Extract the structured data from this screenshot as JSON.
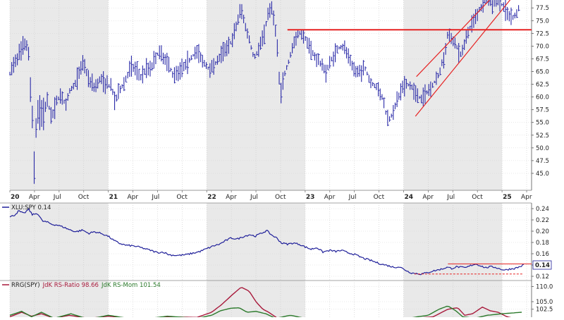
{
  "chart_data": [
    {
      "type": "ohlc",
      "title": "",
      "ylim": [
        42.5,
        78.5
      ],
      "y_ticks": [
        "45.0",
        "47.5",
        "50.0",
        "52.5",
        "55.0",
        "57.5",
        "60.0",
        "62.5",
        "65.0",
        "67.5",
        "70.0",
        "72.5",
        "75.0",
        "77.5"
      ],
      "x_labels": [
        {
          "label": "20",
          "bold": true,
          "t": 0.0
        },
        {
          "label": "Apr",
          "t": 0.25
        },
        {
          "label": "Jul",
          "t": 0.5
        },
        {
          "label": "Oct",
          "t": 0.75
        },
        {
          "label": "21",
          "bold": true,
          "t": 1.0
        },
        {
          "label": "Apr",
          "t": 1.25
        },
        {
          "label": "Jul",
          "t": 1.5
        },
        {
          "label": "Oct",
          "t": 1.75
        },
        {
          "label": "22",
          "bold": true,
          "t": 2.0
        },
        {
          "label": "Apr",
          "t": 2.25
        },
        {
          "label": "Jul",
          "t": 2.5
        },
        {
          "label": "Oct",
          "t": 2.75
        },
        {
          "label": "23",
          "bold": true,
          "t": 3.0
        },
        {
          "label": "Apr",
          "t": 3.25
        },
        {
          "label": "Jul",
          "t": 3.5
        },
        {
          "label": "Oct",
          "t": 3.75
        },
        {
          "label": "24",
          "bold": true,
          "t": 4.0
        },
        {
          "label": "Apr",
          "t": 4.25
        },
        {
          "label": "Jul",
          "t": 4.5
        },
        {
          "label": "Oct",
          "t": 4.75
        },
        {
          "label": "25",
          "bold": true,
          "t": 5.0
        },
        {
          "label": "Apr",
          "t": 5.25
        }
      ],
      "x_range": [
        0.0,
        5.3
      ],
      "shaded_years": [
        [
          0.0,
          1.0
        ],
        [
          2.0,
          3.0
        ],
        [
          4.0,
          5.0
        ]
      ],
      "price_path": [
        [
          0.0,
          64.5
        ],
        [
          0.05,
          67.0
        ],
        [
          0.1,
          68.5
        ],
        [
          0.14,
          70.0
        ],
        [
          0.17,
          70.5
        ],
        [
          0.19,
          68.0
        ],
        [
          0.21,
          61.0
        ],
        [
          0.23,
          56.0
        ],
        [
          0.24,
          50.0
        ],
        [
          0.245,
          44.5
        ],
        [
          0.26,
          53.0
        ],
        [
          0.29,
          58.0
        ],
        [
          0.33,
          56.5
        ],
        [
          0.38,
          59.0
        ],
        [
          0.43,
          56.0
        ],
        [
          0.48,
          59.5
        ],
        [
          0.52,
          60.5
        ],
        [
          0.57,
          58.0
        ],
        [
          0.6,
          61.0
        ],
        [
          0.66,
          62.5
        ],
        [
          0.7,
          64.5
        ],
        [
          0.75,
          67.0
        ],
        [
          0.8,
          63.5
        ],
        [
          0.86,
          62.0
        ],
        [
          0.92,
          63.5
        ],
        [
          0.98,
          62.5
        ],
        [
          1.03,
          62.0
        ],
        [
          1.07,
          59.0
        ],
        [
          1.12,
          61.5
        ],
        [
          1.18,
          63.5
        ],
        [
          1.23,
          66.0
        ],
        [
          1.28,
          65.5
        ],
        [
          1.33,
          64.0
        ],
        [
          1.38,
          65.5
        ],
        [
          1.44,
          66.0
        ],
        [
          1.5,
          68.5
        ],
        [
          1.56,
          68.0
        ],
        [
          1.61,
          66.5
        ],
        [
          1.65,
          64.5
        ],
        [
          1.7,
          65.0
        ],
        [
          1.77,
          66.0
        ],
        [
          1.83,
          67.5
        ],
        [
          1.9,
          69.0
        ],
        [
          1.96,
          67.0
        ],
        [
          2.02,
          65.5
        ],
        [
          2.08,
          66.5
        ],
        [
          2.14,
          68.0
        ],
        [
          2.2,
          70.0
        ],
        [
          2.26,
          71.0
        ],
        [
          2.3,
          74.0
        ],
        [
          2.35,
          77.5
        ],
        [
          2.39,
          74.0
        ],
        [
          2.43,
          71.5
        ],
        [
          2.48,
          67.5
        ],
        [
          2.53,
          69.5
        ],
        [
          2.58,
          72.5
        ],
        [
          2.62,
          76.0
        ],
        [
          2.65,
          78.0
        ],
        [
          2.68,
          75.5
        ],
        [
          2.71,
          72.0
        ],
        [
          2.73,
          65.0
        ],
        [
          2.75,
          60.5
        ],
        [
          2.79,
          64.5
        ],
        [
          2.84,
          67.5
        ],
        [
          2.89,
          71.0
        ],
        [
          2.94,
          72.5
        ],
        [
          2.99,
          72.0
        ],
        [
          3.05,
          69.5
        ],
        [
          3.1,
          68.0
        ],
        [
          3.16,
          66.5
        ],
        [
          3.21,
          65.0
        ],
        [
          3.27,
          67.5
        ],
        [
          3.33,
          69.5
        ],
        [
          3.38,
          70.0
        ],
        [
          3.43,
          68.5
        ],
        [
          3.48,
          66.0
        ],
        [
          3.54,
          64.5
        ],
        [
          3.6,
          66.0
        ],
        [
          3.66,
          63.0
        ],
        [
          3.72,
          62.0
        ],
        [
          3.78,
          60.0
        ],
        [
          3.82,
          57.0
        ],
        [
          3.85,
          55.5
        ],
        [
          3.88,
          56.5
        ],
        [
          3.92,
          58.5
        ],
        [
          3.97,
          61.0
        ],
        [
          4.02,
          62.5
        ],
        [
          4.08,
          62.0
        ],
        [
          4.13,
          60.5
        ],
        [
          4.18,
          59.5
        ],
        [
          4.24,
          61.0
        ],
        [
          4.3,
          62.5
        ],
        [
          4.36,
          64.5
        ],
        [
          4.41,
          68.0
        ],
        [
          4.45,
          72.5
        ],
        [
          4.49,
          71.5
        ],
        [
          4.53,
          70.5
        ],
        [
          4.57,
          68.0
        ],
        [
          4.62,
          70.5
        ],
        [
          4.67,
          73.5
        ],
        [
          4.72,
          75.5
        ],
        [
          4.78,
          77.5
        ],
        [
          4.84,
          79.0
        ],
        [
          4.9,
          78.0
        ],
        [
          4.96,
          79.0
        ],
        [
          5.02,
          77.5
        ],
        [
          5.07,
          76.0
        ],
        [
          5.12,
          75.5
        ],
        [
          5.17,
          77.5
        ]
      ],
      "resistance_line": [
        [
          2.82,
          73.2
        ],
        [
          5.3,
          73.2
        ]
      ],
      "trend_channel": {
        "upper": [
          [
            4.13,
            64.0
          ],
          [
            4.92,
            80.0
          ]
        ],
        "lower": [
          [
            4.12,
            56.2
          ],
          [
            5.1,
            79.5
          ]
        ]
      },
      "colors": {
        "bars": "#2a2aa8",
        "annotation": "#e62222",
        "shade": "#e9e9e9"
      }
    },
    {
      "type": "line",
      "series": [
        {
          "name": "XLU:SPY 0.14"
        }
      ],
      "legend": "top-left",
      "ylim": [
        0.115,
        0.245
      ],
      "y_ticks": [
        "0.12",
        "0.14",
        "0.16",
        "0.18",
        "0.20",
        "0.22",
        "0.24"
      ],
      "last_value": "0.14",
      "path": [
        [
          0.0,
          0.225
        ],
        [
          0.05,
          0.229
        ],
        [
          0.09,
          0.236
        ],
        [
          0.14,
          0.231
        ],
        [
          0.19,
          0.239
        ],
        [
          0.23,
          0.229
        ],
        [
          0.28,
          0.232
        ],
        [
          0.33,
          0.218
        ],
        [
          0.38,
          0.216
        ],
        [
          0.43,
          0.212
        ],
        [
          0.48,
          0.211
        ],
        [
          0.55,
          0.207
        ],
        [
          0.6,
          0.203
        ],
        [
          0.67,
          0.199
        ],
        [
          0.74,
          0.202
        ],
        [
          0.8,
          0.196
        ],
        [
          0.86,
          0.199
        ],
        [
          0.93,
          0.196
        ],
        [
          1.0,
          0.191
        ],
        [
          1.06,
          0.183
        ],
        [
          1.12,
          0.178
        ],
        [
          1.18,
          0.175
        ],
        [
          1.25,
          0.174
        ],
        [
          1.31,
          0.172
        ],
        [
          1.37,
          0.169
        ],
        [
          1.43,
          0.166
        ],
        [
          1.5,
          0.162
        ],
        [
          1.56,
          0.163
        ],
        [
          1.62,
          0.158
        ],
        [
          1.7,
          0.157
        ],
        [
          1.78,
          0.158
        ],
        [
          1.86,
          0.161
        ],
        [
          1.93,
          0.164
        ],
        [
          2.0,
          0.169
        ],
        [
          2.07,
          0.174
        ],
        [
          2.13,
          0.177
        ],
        [
          2.19,
          0.183
        ],
        [
          2.25,
          0.188
        ],
        [
          2.31,
          0.186
        ],
        [
          2.38,
          0.191
        ],
        [
          2.44,
          0.194
        ],
        [
          2.49,
          0.191
        ],
        [
          2.55,
          0.196
        ],
        [
          2.61,
          0.201
        ],
        [
          2.66,
          0.193
        ],
        [
          2.71,
          0.188
        ],
        [
          2.76,
          0.179
        ],
        [
          2.82,
          0.177
        ],
        [
          2.88,
          0.179
        ],
        [
          2.94,
          0.177
        ],
        [
          3.0,
          0.172
        ],
        [
          3.06,
          0.168
        ],
        [
          3.12,
          0.171
        ],
        [
          3.18,
          0.163
        ],
        [
          3.25,
          0.166
        ],
        [
          3.31,
          0.164
        ],
        [
          3.37,
          0.166
        ],
        [
          3.43,
          0.162
        ],
        [
          3.5,
          0.159
        ],
        [
          3.55,
          0.155
        ],
        [
          3.61,
          0.151
        ],
        [
          3.67,
          0.148
        ],
        [
          3.73,
          0.144
        ],
        [
          3.79,
          0.141
        ],
        [
          3.84,
          0.139
        ],
        [
          3.9,
          0.136
        ],
        [
          3.95,
          0.137
        ],
        [
          4.0,
          0.133
        ],
        [
          4.04,
          0.129
        ],
        [
          4.08,
          0.126
        ],
        [
          4.13,
          0.125
        ],
        [
          4.18,
          0.124
        ],
        [
          4.23,
          0.126
        ],
        [
          4.29,
          0.129
        ],
        [
          4.34,
          0.131
        ],
        [
          4.39,
          0.133
        ],
        [
          4.44,
          0.136
        ],
        [
          4.49,
          0.134
        ],
        [
          4.54,
          0.137
        ],
        [
          4.58,
          0.136
        ],
        [
          4.63,
          0.135
        ],
        [
          4.68,
          0.139
        ],
        [
          4.73,
          0.142
        ],
        [
          4.78,
          0.139
        ],
        [
          4.83,
          0.135
        ],
        [
          4.88,
          0.137
        ],
        [
          4.93,
          0.136
        ],
        [
          4.98,
          0.133
        ],
        [
          5.03,
          0.131
        ],
        [
          5.08,
          0.133
        ],
        [
          5.13,
          0.134
        ],
        [
          5.18,
          0.137
        ],
        [
          5.23,
          0.141
        ]
      ],
      "resistance_line": [
        [
          4.45,
          0.142
        ],
        [
          5.3,
          0.142
        ]
      ],
      "support_line_dashed": [
        [
          4.11,
          0.124
        ],
        [
          5.22,
          0.124
        ]
      ],
      "colors": {
        "line": "#20209a",
        "annotation": "#e62222"
      }
    },
    {
      "type": "line",
      "legend": "top-left",
      "legend_parts": [
        {
          "text": "RRG(SPY)",
          "color": "#222222"
        },
        {
          "text": "JdK RS-Ratio 98.66",
          "color": "#a8193b"
        },
        {
          "text": "JdK RS-Mom 101.54",
          "color": "#2b7a2b"
        }
      ],
      "ylim": [
        98.0,
        112.0
      ],
      "y_ticks": [
        "110.0",
        "105.0",
        "102.5"
      ],
      "series": [
        {
          "name": "JdK RS-Ratio 98.66",
          "path": [
            [
              0.0,
              100.0
            ],
            [
              0.12,
              101.5
            ],
            [
              0.22,
              100.2
            ],
            [
              0.32,
              101.0
            ],
            [
              0.45,
              99.5
            ],
            [
              0.6,
              100.5
            ],
            [
              0.8,
              99.5
            ],
            [
              1.0,
              100.2
            ],
            [
              1.3,
              99.2
            ],
            [
              1.6,
              100.0
            ],
            [
              1.9,
              99.8
            ],
            [
              2.05,
              101.5
            ],
            [
              2.15,
              104.0
            ],
            [
              2.25,
              107.0
            ],
            [
              2.35,
              109.8
            ],
            [
              2.43,
              108.5
            ],
            [
              2.5,
              105.0
            ],
            [
              2.57,
              102.5
            ],
            [
              2.63,
              101.5
            ],
            [
              2.72,
              99.5
            ],
            [
              2.85,
              99.0
            ],
            [
              3.0,
              99.5
            ],
            [
              3.3,
              99.0
            ],
            [
              3.6,
              98.8
            ],
            [
              4.0,
              99.2
            ],
            [
              4.3,
              100.0
            ],
            [
              4.45,
              102.5
            ],
            [
              4.55,
              103.0
            ],
            [
              4.62,
              100.5
            ],
            [
              4.7,
              101.0
            ],
            [
              4.8,
              103.2
            ],
            [
              4.88,
              102.0
            ],
            [
              4.96,
              101.5
            ],
            [
              5.05,
              100.0
            ],
            [
              5.2,
              99.0
            ]
          ]
        },
        {
          "name": "JdK RS-Mom 101.54",
          "path": [
            [
              0.0,
              100.5
            ],
            [
              0.12,
              101.8
            ],
            [
              0.22,
              100.0
            ],
            [
              0.32,
              101.5
            ],
            [
              0.45,
              99.5
            ],
            [
              0.62,
              101.0
            ],
            [
              0.8,
              99.2
            ],
            [
              1.0,
              100.5
            ],
            [
              1.3,
              99.0
            ],
            [
              1.6,
              100.2
            ],
            [
              1.9,
              99.5
            ],
            [
              2.05,
              100.5
            ],
            [
              2.14,
              102.0
            ],
            [
              2.24,
              102.8
            ],
            [
              2.33,
              103.0
            ],
            [
              2.41,
              101.5
            ],
            [
              2.5,
              101.8
            ],
            [
              2.6,
              101.0
            ],
            [
              2.7,
              99.5
            ],
            [
              2.85,
              100.5
            ],
            [
              3.0,
              99.5
            ],
            [
              3.3,
              99.2
            ],
            [
              3.6,
              99.5
            ],
            [
              4.0,
              99.3
            ],
            [
              4.25,
              100.5
            ],
            [
              4.36,
              102.5
            ],
            [
              4.45,
              103.6
            ],
            [
              4.53,
              102.0
            ],
            [
              4.6,
              100.0
            ],
            [
              4.72,
              99.5
            ],
            [
              4.85,
              100.5
            ],
            [
              5.0,
              101.0
            ],
            [
              5.2,
              101.5
            ]
          ]
        }
      ],
      "colors": {
        "ratio": "#a8193b",
        "mom": "#2b7a2b"
      }
    }
  ]
}
